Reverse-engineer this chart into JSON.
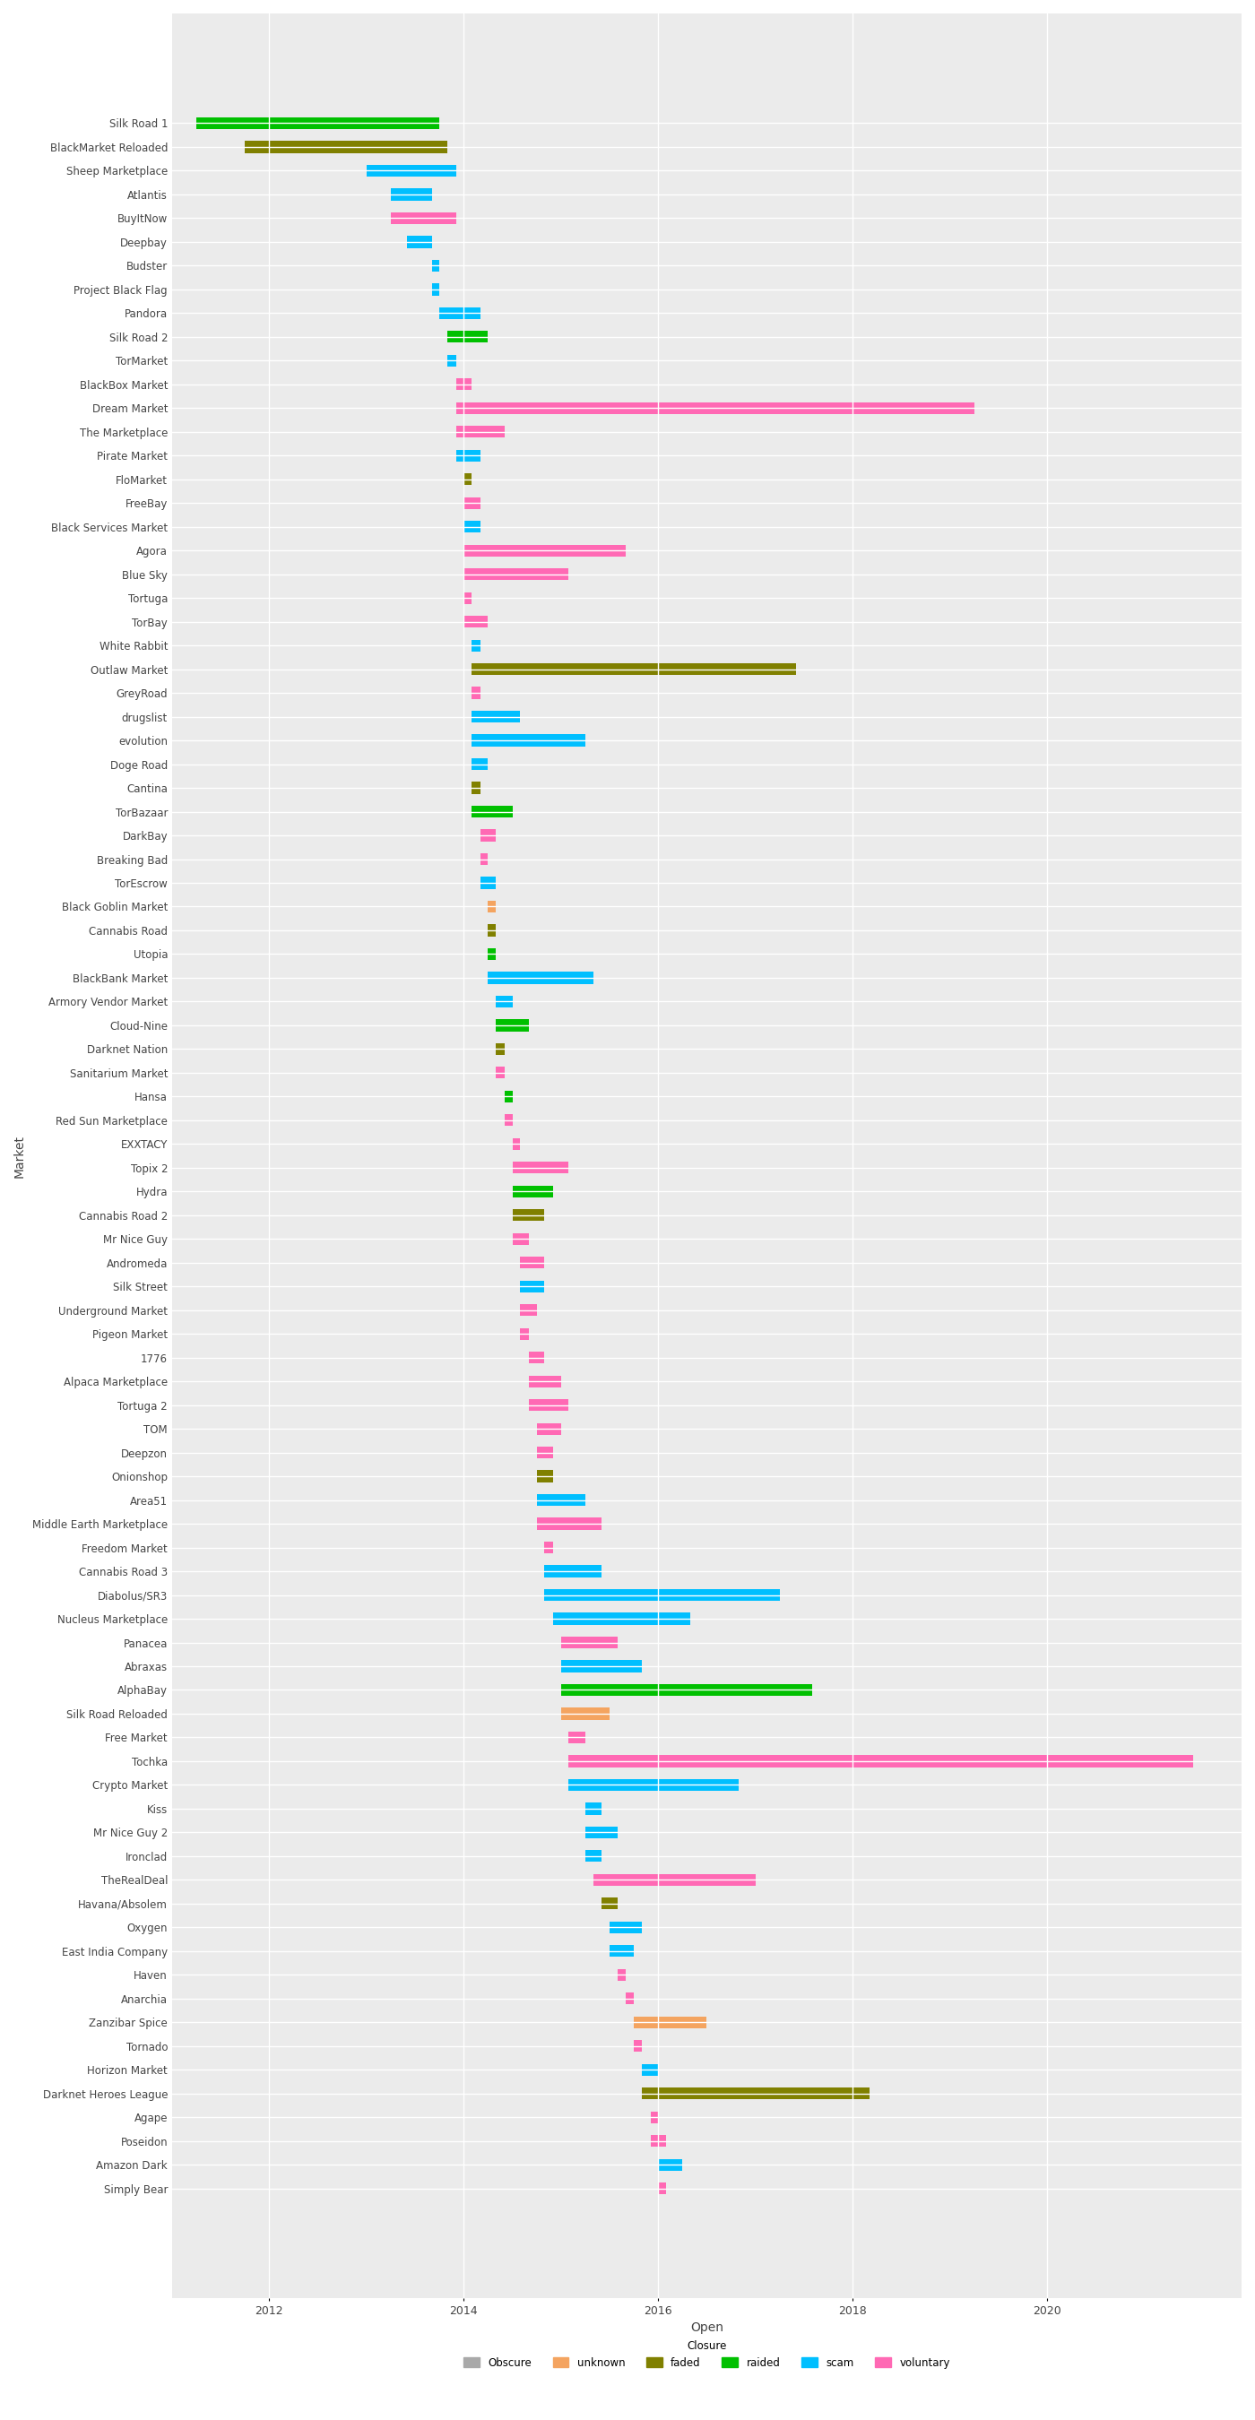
{
  "markets": [
    {
      "name": "Silk Road 1",
      "open": 2011.25,
      "close": 2013.75,
      "closure": "raided"
    },
    {
      "name": "BlackMarket Reloaded",
      "open": 2011.75,
      "close": 2013.83,
      "closure": "faded"
    },
    {
      "name": "Sheep Marketplace",
      "open": 2013.0,
      "close": 2013.92,
      "closure": "scam"
    },
    {
      "name": "Atlantis",
      "open": 2013.25,
      "close": 2013.67,
      "closure": "scam"
    },
    {
      "name": "BuyItNow",
      "open": 2013.25,
      "close": 2013.92,
      "closure": "voluntary"
    },
    {
      "name": "Deepbay",
      "open": 2013.42,
      "close": 2013.67,
      "closure": "scam"
    },
    {
      "name": "Budster",
      "open": 2013.67,
      "close": 2013.75,
      "closure": "scam"
    },
    {
      "name": "Project Black Flag",
      "open": 2013.67,
      "close": 2013.75,
      "closure": "scam"
    },
    {
      "name": "Pandora",
      "open": 2013.75,
      "close": 2014.17,
      "closure": "scam"
    },
    {
      "name": "Silk Road 2",
      "open": 2013.83,
      "close": 2014.25,
      "closure": "raided"
    },
    {
      "name": "TorMarket",
      "open": 2013.83,
      "close": 2013.92,
      "closure": "scam"
    },
    {
      "name": "BlackBox Market",
      "open": 2013.92,
      "close": 2014.08,
      "closure": "voluntary"
    },
    {
      "name": "Dream Market",
      "open": 2013.92,
      "close": 2019.25,
      "closure": "voluntary"
    },
    {
      "name": "The Marketplace",
      "open": 2013.92,
      "close": 2014.42,
      "closure": "voluntary"
    },
    {
      "name": "Pirate Market",
      "open": 2013.92,
      "close": 2014.17,
      "closure": "scam"
    },
    {
      "name": "FloMarket",
      "open": 2014.0,
      "close": 2014.08,
      "closure": "faded"
    },
    {
      "name": "FreeBay",
      "open": 2014.0,
      "close": 2014.17,
      "closure": "voluntary"
    },
    {
      "name": "Black Services Market",
      "open": 2014.0,
      "close": 2014.17,
      "closure": "scam"
    },
    {
      "name": "Agora",
      "open": 2014.0,
      "close": 2015.67,
      "closure": "voluntary"
    },
    {
      "name": "Blue Sky",
      "open": 2014.0,
      "close": 2015.08,
      "closure": "voluntary"
    },
    {
      "name": "Tortuga",
      "open": 2014.0,
      "close": 2014.08,
      "closure": "voluntary"
    },
    {
      "name": "TorBay",
      "open": 2014.0,
      "close": 2014.25,
      "closure": "voluntary"
    },
    {
      "name": "White Rabbit",
      "open": 2014.08,
      "close": 2014.17,
      "closure": "scam"
    },
    {
      "name": "Outlaw Market",
      "open": 2014.08,
      "close": 2017.42,
      "closure": "faded"
    },
    {
      "name": "GreyRoad",
      "open": 2014.08,
      "close": 2014.17,
      "closure": "voluntary"
    },
    {
      "name": "drugslist",
      "open": 2014.08,
      "close": 2014.58,
      "closure": "scam"
    },
    {
      "name": "evolution",
      "open": 2014.08,
      "close": 2015.25,
      "closure": "scam"
    },
    {
      "name": "Doge Road",
      "open": 2014.08,
      "close": 2014.25,
      "closure": "scam"
    },
    {
      "name": "Cantina",
      "open": 2014.08,
      "close": 2014.17,
      "closure": "faded"
    },
    {
      "name": "TorBazaar",
      "open": 2014.08,
      "close": 2014.5,
      "closure": "raided"
    },
    {
      "name": "DarkBay",
      "open": 2014.17,
      "close": 2014.33,
      "closure": "voluntary"
    },
    {
      "name": "Breaking Bad",
      "open": 2014.17,
      "close": 2014.25,
      "closure": "voluntary"
    },
    {
      "name": "TorEscrow",
      "open": 2014.17,
      "close": 2014.33,
      "closure": "scam"
    },
    {
      "name": "Black Goblin Market",
      "open": 2014.25,
      "close": 2014.33,
      "closure": "unknown"
    },
    {
      "name": "Cannabis Road",
      "open": 2014.25,
      "close": 2014.33,
      "closure": "faded"
    },
    {
      "name": "Utopia",
      "open": 2014.25,
      "close": 2014.33,
      "closure": "raided"
    },
    {
      "name": "BlackBank Market",
      "open": 2014.25,
      "close": 2015.33,
      "closure": "scam"
    },
    {
      "name": "Armory Vendor Market",
      "open": 2014.33,
      "close": 2014.5,
      "closure": "scam"
    },
    {
      "name": "Cloud-Nine",
      "open": 2014.33,
      "close": 2014.67,
      "closure": "raided"
    },
    {
      "name": "Darknet Nation",
      "open": 2014.33,
      "close": 2014.42,
      "closure": "faded"
    },
    {
      "name": "Sanitarium Market",
      "open": 2014.33,
      "close": 2014.42,
      "closure": "voluntary"
    },
    {
      "name": "Hansa",
      "open": 2014.42,
      "close": 2014.5,
      "closure": "raided"
    },
    {
      "name": "Red Sun Marketplace",
      "open": 2014.42,
      "close": 2014.5,
      "closure": "voluntary"
    },
    {
      "name": "EXXTACY",
      "open": 2014.5,
      "close": 2014.58,
      "closure": "voluntary"
    },
    {
      "name": "Topix 2",
      "open": 2014.5,
      "close": 2015.08,
      "closure": "voluntary"
    },
    {
      "name": "Hydra",
      "open": 2014.5,
      "close": 2014.92,
      "closure": "raided"
    },
    {
      "name": "Cannabis Road 2",
      "open": 2014.5,
      "close": 2014.83,
      "closure": "faded"
    },
    {
      "name": "Mr Nice Guy",
      "open": 2014.5,
      "close": 2014.67,
      "closure": "voluntary"
    },
    {
      "name": "Andromeda",
      "open": 2014.58,
      "close": 2014.83,
      "closure": "voluntary"
    },
    {
      "name": "Silk Street",
      "open": 2014.58,
      "close": 2014.83,
      "closure": "scam"
    },
    {
      "name": "Underground Market",
      "open": 2014.58,
      "close": 2014.75,
      "closure": "voluntary"
    },
    {
      "name": "Pigeon Market",
      "open": 2014.58,
      "close": 2014.67,
      "closure": "voluntary"
    },
    {
      "name": "1776",
      "open": 2014.67,
      "close": 2014.83,
      "closure": "voluntary"
    },
    {
      "name": "Alpaca Marketplace",
      "open": 2014.67,
      "close": 2015.0,
      "closure": "voluntary"
    },
    {
      "name": "Tortuga 2",
      "open": 2014.67,
      "close": 2015.08,
      "closure": "voluntary"
    },
    {
      "name": "TOM",
      "open": 2014.75,
      "close": 2015.0,
      "closure": "voluntary"
    },
    {
      "name": "Deepzon",
      "open": 2014.75,
      "close": 2014.92,
      "closure": "voluntary"
    },
    {
      "name": "Onionshop",
      "open": 2014.75,
      "close": 2014.92,
      "closure": "faded"
    },
    {
      "name": "Area51",
      "open": 2014.75,
      "close": 2015.25,
      "closure": "scam"
    },
    {
      "name": "Middle Earth Marketplace",
      "open": 2014.75,
      "close": 2015.42,
      "closure": "voluntary"
    },
    {
      "name": "Freedom Market",
      "open": 2014.83,
      "close": 2014.92,
      "closure": "voluntary"
    },
    {
      "name": "Cannabis Road 3",
      "open": 2014.83,
      "close": 2015.42,
      "closure": "scam"
    },
    {
      "name": "Diabolus/SR3",
      "open": 2014.83,
      "close": 2017.25,
      "closure": "scam"
    },
    {
      "name": "Nucleus Marketplace",
      "open": 2014.92,
      "close": 2016.33,
      "closure": "scam"
    },
    {
      "name": "Panacea",
      "open": 2015.0,
      "close": 2015.58,
      "closure": "voluntary"
    },
    {
      "name": "Abraxas",
      "open": 2015.0,
      "close": 2015.83,
      "closure": "scam"
    },
    {
      "name": "AlphaBay",
      "open": 2015.0,
      "close": 2017.58,
      "closure": "raided"
    },
    {
      "name": "Silk Road Reloaded",
      "open": 2015.0,
      "close": 2015.5,
      "closure": "unknown"
    },
    {
      "name": "Free Market",
      "open": 2015.08,
      "close": 2015.25,
      "closure": "voluntary"
    },
    {
      "name": "Tochka",
      "open": 2015.08,
      "close": 2021.5,
      "closure": "voluntary"
    },
    {
      "name": "Crypto Market",
      "open": 2015.08,
      "close": 2016.83,
      "closure": "scam"
    },
    {
      "name": "Kiss",
      "open": 2015.25,
      "close": 2015.42,
      "closure": "scam"
    },
    {
      "name": "Mr Nice Guy 2",
      "open": 2015.25,
      "close": 2015.58,
      "closure": "scam"
    },
    {
      "name": "Ironclad",
      "open": 2015.25,
      "close": 2015.42,
      "closure": "scam"
    },
    {
      "name": "TheRealDeal",
      "open": 2015.33,
      "close": 2017.0,
      "closure": "voluntary"
    },
    {
      "name": "Havana/Absolem",
      "open": 2015.42,
      "close": 2015.58,
      "closure": "faded"
    },
    {
      "name": "Oxygen",
      "open": 2015.5,
      "close": 2015.83,
      "closure": "scam"
    },
    {
      "name": "East India Company",
      "open": 2015.5,
      "close": 2015.75,
      "closure": "scam"
    },
    {
      "name": "Haven",
      "open": 2015.58,
      "close": 2015.67,
      "closure": "voluntary"
    },
    {
      "name": "Anarchia",
      "open": 2015.67,
      "close": 2015.75,
      "closure": "voluntary"
    },
    {
      "name": "Zanzibar Spice",
      "open": 2015.75,
      "close": 2016.5,
      "closure": "unknown"
    },
    {
      "name": "Tornado",
      "open": 2015.75,
      "close": 2015.83,
      "closure": "voluntary"
    },
    {
      "name": "Horizon Market",
      "open": 2015.83,
      "close": 2016.0,
      "closure": "scam"
    },
    {
      "name": "Darknet Heroes League",
      "open": 2015.83,
      "close": 2018.17,
      "closure": "faded"
    },
    {
      "name": "Agape",
      "open": 2015.92,
      "close": 2016.0,
      "closure": "voluntary"
    },
    {
      "name": "Poseidon",
      "open": 2015.92,
      "close": 2016.08,
      "closure": "voluntary"
    },
    {
      "name": "Amazon Dark",
      "open": 2016.0,
      "close": 2016.25,
      "closure": "scam"
    },
    {
      "name": "Simply Bear",
      "open": 2016.0,
      "close": 2016.08,
      "closure": "voluntary"
    }
  ],
  "closure_colors": {
    "unknown": "#F4A460",
    "faded": "#808000",
    "raided": "#00C000",
    "scam": "#00BFFF",
    "voluntary": "#FF69B4"
  },
  "legend_labels": [
    "Obscure",
    "unknown",
    "faded",
    "raided",
    "scam",
    "voluntary"
  ],
  "legend_colors": [
    "#A9A9A9",
    "#F4A460",
    "#808000",
    "#00C000",
    "#00BFFF",
    "#FF69B4"
  ],
  "xlabel": "Open",
  "ylabel": "Market",
  "xlim": [
    2011.0,
    2022.0
  ],
  "bg_color": "#EBEBEB",
  "grid_color": "#FFFFFF",
  "bar_height": 0.5,
  "title_fontsize": 10,
  "label_fontsize": 8
}
